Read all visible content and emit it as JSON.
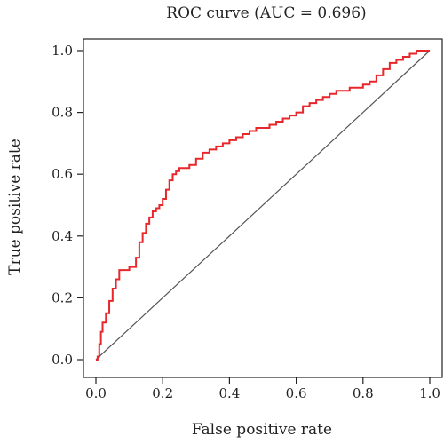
{
  "chart_data": {
    "type": "line",
    "title": "ROC curve (AUC = 0.696)",
    "xlabel": "False positive rate",
    "ylabel": "True positive rate",
    "xlim": [
      0.0,
      1.0
    ],
    "ylim": [
      0.0,
      1.0
    ],
    "xticks": [
      "0.0",
      "0.2",
      "0.4",
      "0.6",
      "0.8",
      "1.0"
    ],
    "yticks": [
      "0.0",
      "0.2",
      "0.4",
      "0.6",
      "0.8",
      "1.0"
    ],
    "grid": false,
    "legend": "none",
    "series": [
      {
        "color": "#e8272a",
        "x": [
          0.0,
          0.005,
          0.01,
          0.015,
          0.02,
          0.03,
          0.04,
          0.05,
          0.06,
          0.07,
          0.08,
          0.1,
          0.12,
          0.13,
          0.14,
          0.15,
          0.16,
          0.17,
          0.18,
          0.19,
          0.2,
          0.21,
          0.22,
          0.23,
          0.24,
          0.25,
          0.26,
          0.28,
          0.3,
          0.32,
          0.34,
          0.36,
          0.38,
          0.4,
          0.42,
          0.44,
          0.46,
          0.48,
          0.5,
          0.52,
          0.54,
          0.56,
          0.58,
          0.6,
          0.62,
          0.64,
          0.66,
          0.68,
          0.7,
          0.72,
          0.74,
          0.76,
          0.78,
          0.8,
          0.82,
          0.84,
          0.86,
          0.88,
          0.9,
          0.92,
          0.94,
          0.96,
          0.98,
          1.0
        ],
        "y": [
          0.0,
          0.01,
          0.05,
          0.09,
          0.12,
          0.15,
          0.19,
          0.23,
          0.26,
          0.29,
          0.29,
          0.3,
          0.33,
          0.38,
          0.41,
          0.44,
          0.46,
          0.48,
          0.49,
          0.5,
          0.52,
          0.55,
          0.58,
          0.6,
          0.61,
          0.62,
          0.62,
          0.63,
          0.65,
          0.67,
          0.68,
          0.69,
          0.7,
          0.71,
          0.72,
          0.73,
          0.74,
          0.75,
          0.75,
          0.76,
          0.77,
          0.78,
          0.79,
          0.8,
          0.82,
          0.83,
          0.84,
          0.85,
          0.86,
          0.87,
          0.87,
          0.88,
          0.88,
          0.89,
          0.9,
          0.92,
          0.94,
          0.96,
          0.97,
          0.98,
          0.99,
          1.0,
          1.0,
          1.0
        ]
      },
      {
        "color": "#555555",
        "x": [
          0.0,
          1.0
        ],
        "y": [
          0.0,
          1.0
        ]
      }
    ]
  }
}
